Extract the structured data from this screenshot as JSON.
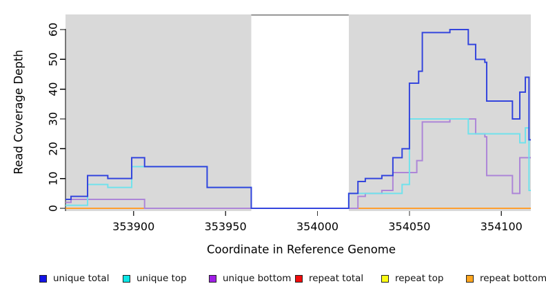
{
  "chart_data": {
    "type": "line",
    "subtype": "step-coverage",
    "xlabel": "Coordinate in Reference Genome",
    "ylabel": "Read Coverage Depth",
    "xlim": [
      353863,
      354116
    ],
    "ylim": [
      0,
      63
    ],
    "x_ticks": [
      353900,
      353950,
      354000,
      354050,
      354100
    ],
    "y_ticks": [
      0,
      10,
      20,
      30,
      40,
      50,
      60
    ],
    "grid": false,
    "plot_background": "#d9d9d9",
    "gap_band": {
      "from": 353964,
      "to": 354017,
      "color": "#ffffff",
      "top_border": "#7f7f7f"
    },
    "series": [
      {
        "name": "unique total",
        "color": "#3344dd",
        "end": 354116,
        "steps": [
          [
            353863,
            3
          ],
          [
            353866,
            4
          ],
          [
            353875,
            11
          ],
          [
            353886,
            10
          ],
          [
            353899,
            17
          ],
          [
            353906,
            14
          ],
          [
            353940,
            7
          ],
          [
            353964,
            0
          ],
          [
            354017,
            5
          ],
          [
            354022,
            9
          ],
          [
            354026,
            10
          ],
          [
            354035,
            11
          ],
          [
            354041,
            17
          ],
          [
            354046,
            20
          ],
          [
            354050,
            42
          ],
          [
            354055,
            46
          ],
          [
            354057,
            59
          ],
          [
            354072,
            60
          ],
          [
            354082,
            55
          ],
          [
            354086,
            50
          ],
          [
            354091,
            49
          ],
          [
            354092,
            36
          ],
          [
            354106,
            30
          ],
          [
            354110,
            39
          ],
          [
            354113,
            44
          ],
          [
            354115,
            23
          ]
        ]
      },
      {
        "name": "unique top",
        "color": "#70e2ec",
        "end": 354116,
        "steps": [
          [
            353863,
            1
          ],
          [
            353875,
            8
          ],
          [
            353886,
            7
          ],
          [
            353899,
            14
          ],
          [
            353940,
            7
          ],
          [
            353964,
            0
          ],
          [
            354017,
            5
          ],
          [
            354046,
            8
          ],
          [
            354050,
            30
          ],
          [
            354082,
            25
          ],
          [
            354110,
            22
          ],
          [
            354113,
            27
          ],
          [
            354115,
            6
          ]
        ]
      },
      {
        "name": "unique bottom",
        "color": "#ad85d8",
        "end": 354116,
        "steps": [
          [
            353863,
            2
          ],
          [
            353866,
            3
          ],
          [
            353906,
            0
          ],
          [
            354022,
            4
          ],
          [
            354026,
            5
          ],
          [
            354035,
            6
          ],
          [
            354041,
            12
          ],
          [
            354054,
            16
          ],
          [
            354057,
            29
          ],
          [
            354072,
            30
          ],
          [
            354086,
            25
          ],
          [
            354091,
            24
          ],
          [
            354092,
            11
          ],
          [
            354106,
            5
          ],
          [
            354110,
            17
          ]
        ]
      },
      {
        "name": "repeat total",
        "color": "#d4648c",
        "end": 354116,
        "steps": [
          [
            353863,
            0
          ]
        ]
      },
      {
        "name": "repeat top",
        "color": "#f2e43c",
        "end": 354116,
        "steps": [
          [
            353863,
            0
          ]
        ]
      },
      {
        "name": "repeat bottom",
        "color": "#ff9e2e",
        "end": 354116,
        "steps": [
          [
            353863,
            0
          ]
        ]
      }
    ],
    "draw_order": [
      "repeat top",
      "repeat total",
      "repeat bottom",
      "unique bottom",
      "unique top",
      "unique total"
    ],
    "legend": {
      "position": "bottom",
      "items": [
        {
          "label": "unique total",
          "swatch_color": "#1414e6"
        },
        {
          "label": "unique top",
          "swatch_color": "#0ce6e6"
        },
        {
          "label": "unique bottom",
          "swatch_color": "#a01ee6"
        },
        {
          "label": "repeat total",
          "swatch_color": "#f00c0c"
        },
        {
          "label": "repeat top",
          "swatch_color": "#fcfc14"
        },
        {
          "label": "repeat bottom",
          "swatch_color": "#ffa51e"
        }
      ]
    }
  }
}
